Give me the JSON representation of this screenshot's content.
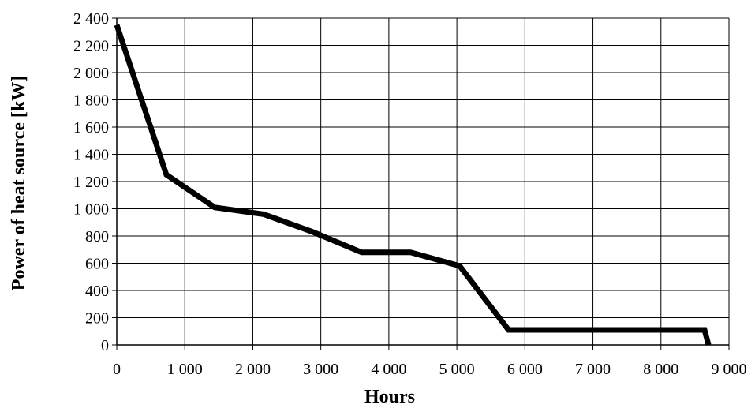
{
  "chart_data": {
    "type": "line",
    "title": "",
    "xlabel": "Hours",
    "ylabel": "Power of heat source [kW]",
    "xlim": [
      0,
      9000
    ],
    "ylim": [
      0,
      2400
    ],
    "xticks": [
      0,
      1000,
      2000,
      3000,
      4000,
      5000,
      6000,
      7000,
      8000,
      9000
    ],
    "xtick_labels": [
      "0",
      "1 000",
      "2 000",
      "3 000",
      "4 000",
      "5 000",
      "6 000",
      "7 000",
      "8 000",
      "9 000"
    ],
    "yticks": [
      0,
      200,
      400,
      600,
      800,
      1000,
      1200,
      1400,
      1600,
      1800,
      2000,
      2200,
      2400
    ],
    "ytick_labels": [
      "0",
      "200",
      "400",
      "600",
      "800",
      "1 000",
      "1 200",
      "1 400",
      "1 600",
      "1 800",
      "2 000",
      "2 200",
      "2 400"
    ],
    "grid": true,
    "legend": "none",
    "series": [
      {
        "color": "#000000",
        "points": [
          {
            "x": 0,
            "y": 2350
          },
          {
            "x": 730,
            "y": 1250
          },
          {
            "x": 1440,
            "y": 1010
          },
          {
            "x": 2160,
            "y": 960
          },
          {
            "x": 2880,
            "y": 830
          },
          {
            "x": 3600,
            "y": 680
          },
          {
            "x": 4320,
            "y": 680
          },
          {
            "x": 5040,
            "y": 580
          },
          {
            "x": 5760,
            "y": 110
          },
          {
            "x": 8640,
            "y": 110
          },
          {
            "x": 8700,
            "y": 0
          }
        ]
      }
    ]
  }
}
